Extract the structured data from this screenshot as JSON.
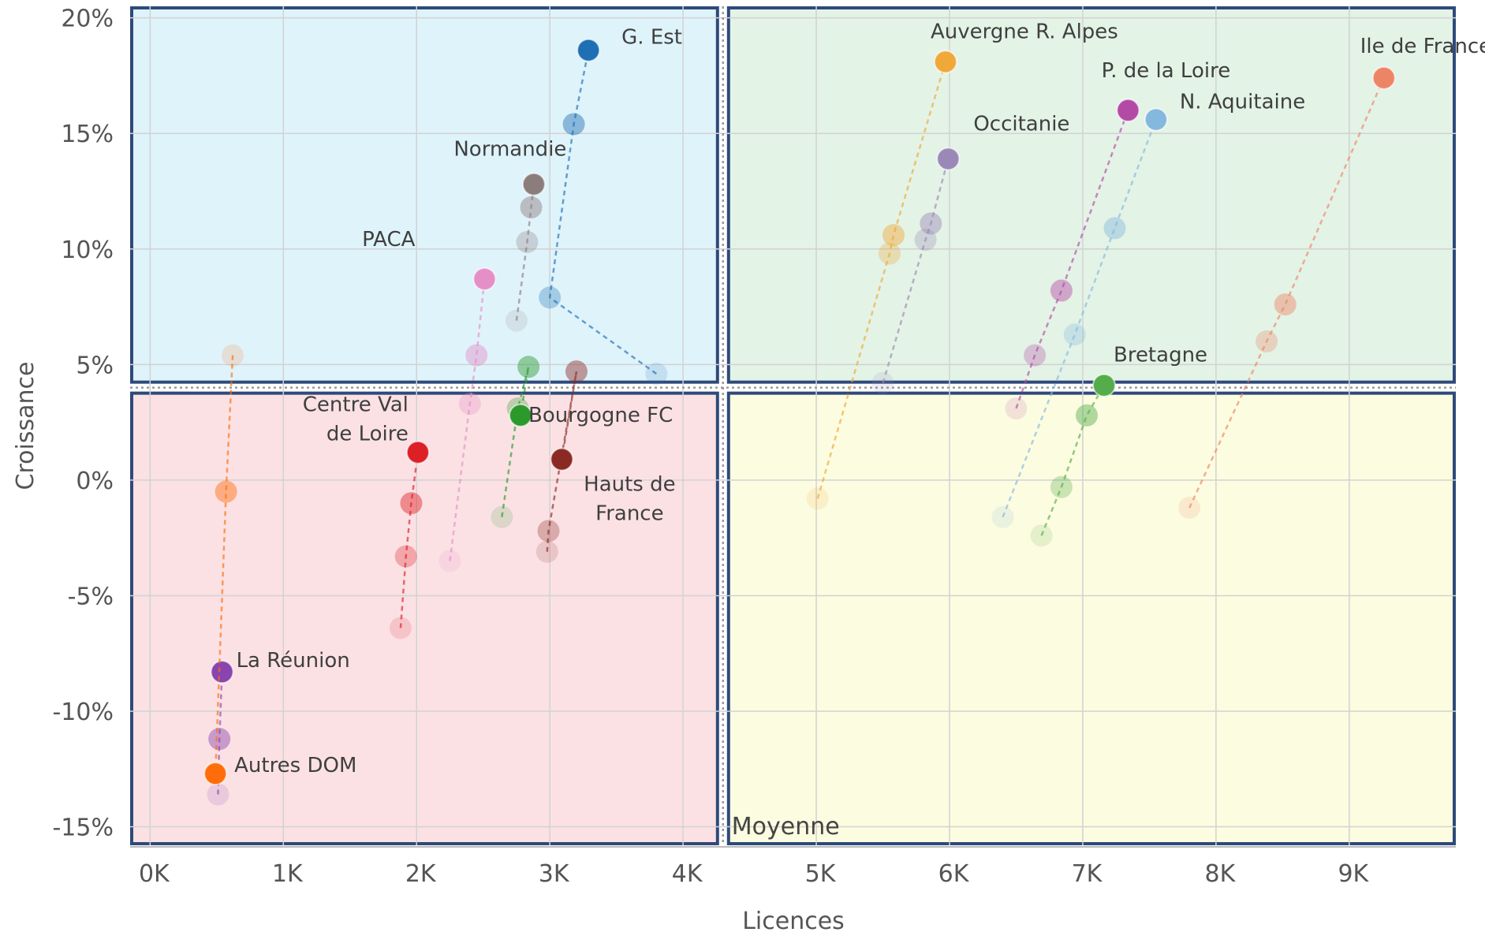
{
  "chart_data": {
    "type": "scatter",
    "xlabel": "Licences",
    "ylabel": "Croissance",
    "xlim": [
      -150,
      9800
    ],
    "ylim": [
      -15.8,
      20.5
    ],
    "x_ticks": [
      {
        "value": 0,
        "label": "0K"
      },
      {
        "value": 1000,
        "label": "1K"
      },
      {
        "value": 2000,
        "label": "2K"
      },
      {
        "value": 3000,
        "label": "3K"
      },
      {
        "value": 4000,
        "label": "4K"
      },
      {
        "value": 5000,
        "label": "5K"
      },
      {
        "value": 6000,
        "label": "6K"
      },
      {
        "value": 7000,
        "label": "7K"
      },
      {
        "value": 8000,
        "label": "8K"
      },
      {
        "value": 9000,
        "label": "9K"
      }
    ],
    "y_ticks": [
      {
        "value": 20,
        "label": "20%"
      },
      {
        "value": 15,
        "label": "15%"
      },
      {
        "value": 10,
        "label": "10%"
      },
      {
        "value": 5,
        "label": "5%"
      },
      {
        "value": 0,
        "label": "0%"
      },
      {
        "value": -5,
        "label": "-5%"
      },
      {
        "value": -10,
        "label": "-10%"
      },
      {
        "value": -15,
        "label": "-15%"
      }
    ],
    "grid": true,
    "average": {
      "x": 4300,
      "y": 4.0
    },
    "quadrant_label": "Moyenne",
    "quadrant_colors": {
      "top_left": "#dff3fb",
      "top_right": "#e3f3e6",
      "bottom_left": "#fbe1e4",
      "bottom_right": "#fcfce0",
      "border": "#2e4a7a"
    },
    "series": [
      {
        "name": "G. Est",
        "color": "#1f6fb4",
        "points": [
          [
            3800,
            4.6
          ],
          [
            3000,
            7.9
          ],
          [
            3180,
            15.4
          ],
          [
            3290,
            18.6
          ]
        ],
        "label_dx": 42,
        "label_dy": -8,
        "anchor": "start",
        "lines": [
          "G. Est"
        ]
      },
      {
        "name": "Normandie",
        "color": "#8c7d7d",
        "points": [
          [
            2750,
            6.9
          ],
          [
            2830,
            10.3
          ],
          [
            2860,
            11.8
          ],
          [
            2880,
            12.8
          ]
        ],
        "label_dx": -30,
        "label_dy": -36,
        "anchor": "middle",
        "lines": [
          "Normandie"
        ]
      },
      {
        "name": "PACA",
        "color": "#e58fc8",
        "points": [
          [
            2250,
            -3.5
          ],
          [
            2400,
            3.3
          ],
          [
            2450,
            5.4
          ],
          [
            2510,
            8.7
          ]
        ],
        "label_dx": -88,
        "label_dy": -42,
        "anchor": "end",
        "lines": [
          "PACA"
        ]
      },
      {
        "name": "Centre Val de Loire",
        "color": "#dd1f26",
        "points": [
          [
            1880,
            -6.4
          ],
          [
            1920,
            -3.3
          ],
          [
            1960,
            -1.0
          ],
          [
            2010,
            1.2
          ]
        ],
        "label_dx": -12,
        "label_dy": -52,
        "anchor": "end",
        "lines": [
          "Centre Val",
          "de Loire"
        ]
      },
      {
        "name": "Bourgogne FC",
        "color": "#2b9a2b",
        "points": [
          [
            2640,
            -1.6
          ],
          [
            2760,
            3.1
          ],
          [
            2840,
            4.9
          ],
          [
            2780,
            2.8
          ]
        ],
        "label_dx": 10,
        "label_dy": 8,
        "anchor": "start",
        "lines": [
          "Bourgogne FC"
        ]
      },
      {
        "name": "Hauts de France",
        "color": "#8b2a24",
        "points": [
          [
            2980,
            -3.1
          ],
          [
            2990,
            -2.2
          ],
          [
            3200,
            4.7
          ],
          [
            3090,
            0.9
          ]
        ],
        "label_dx": 86,
        "label_dy": 40,
        "anchor": "middle",
        "lines": [
          "Hauts de",
          "France"
        ]
      },
      {
        "name": "La Réunion",
        "color": "#8a44ad",
        "points": [
          [
            510,
            -13.6
          ],
          [
            520,
            -11.2
          ],
          [
            540,
            -8.3
          ]
        ],
        "label_dx": 18,
        "label_dy": -6,
        "anchor": "start",
        "lines": [
          "La Réunion"
        ]
      },
      {
        "name": "Autres DOM",
        "color": "#ff6d0a",
        "points": [
          [
            620,
            5.4
          ],
          [
            570,
            -0.5
          ],
          [
            490,
            -12.7
          ]
        ],
        "label_dx": 24,
        "label_dy": -2,
        "anchor": "start",
        "lines": [
          "Autres DOM"
        ]
      },
      {
        "name": "Auvergne R. Alpes",
        "color": "#f0a838",
        "points": [
          [
            5010,
            -0.8
          ],
          [
            5550,
            9.8
          ],
          [
            5580,
            10.6
          ],
          [
            5970,
            18.1
          ]
        ],
        "label_dx": 100,
        "label_dy": -30,
        "anchor": "middle",
        "lines": [
          "Auvergne R. Alpes"
        ]
      },
      {
        "name": "Occitanie",
        "color": "#9a88b6",
        "points": [
          [
            5500,
            4.2
          ],
          [
            5820,
            10.4
          ],
          [
            5860,
            11.1
          ],
          [
            5990,
            13.9
          ]
        ],
        "label_dx": 32,
        "label_dy": -36,
        "anchor": "start",
        "lines": [
          "Occitanie"
        ]
      },
      {
        "name": "P. de la Loire",
        "color": "#b34aa6",
        "points": [
          [
            6500,
            3.1
          ],
          [
            6640,
            5.4
          ],
          [
            6840,
            8.2
          ],
          [
            7340,
            16.0
          ]
        ],
        "label_dx": 48,
        "label_dy": -42,
        "anchor": "middle",
        "lines": [
          "P. de la Loire"
        ]
      },
      {
        "name": "N. Aquitaine",
        "color": "#84b8de",
        "points": [
          [
            6400,
            -1.6
          ],
          [
            6940,
            6.3
          ],
          [
            7240,
            10.9
          ],
          [
            7550,
            15.6
          ]
        ],
        "label_dx": 30,
        "label_dy": -14,
        "anchor": "start",
        "lines": [
          "N. Aquitaine"
        ]
      },
      {
        "name": "Bretagne",
        "color": "#54ad4a",
        "points": [
          [
            6690,
            -2.4
          ],
          [
            6840,
            -0.3
          ],
          [
            7030,
            2.8
          ],
          [
            7160,
            4.1
          ]
        ],
        "label_dx": 12,
        "label_dy": -30,
        "anchor": "start",
        "lines": [
          "Bretagne"
        ]
      },
      {
        "name": "Ile de France",
        "color": "#ee8466",
        "points": [
          [
            7800,
            -1.2
          ],
          [
            8380,
            6.0
          ],
          [
            8520,
            7.6
          ],
          [
            9260,
            17.4
          ]
        ],
        "label_dx": -30,
        "label_dy": -32,
        "anchor": "start",
        "lines": [
          "Ile de France"
        ]
      }
    ]
  }
}
